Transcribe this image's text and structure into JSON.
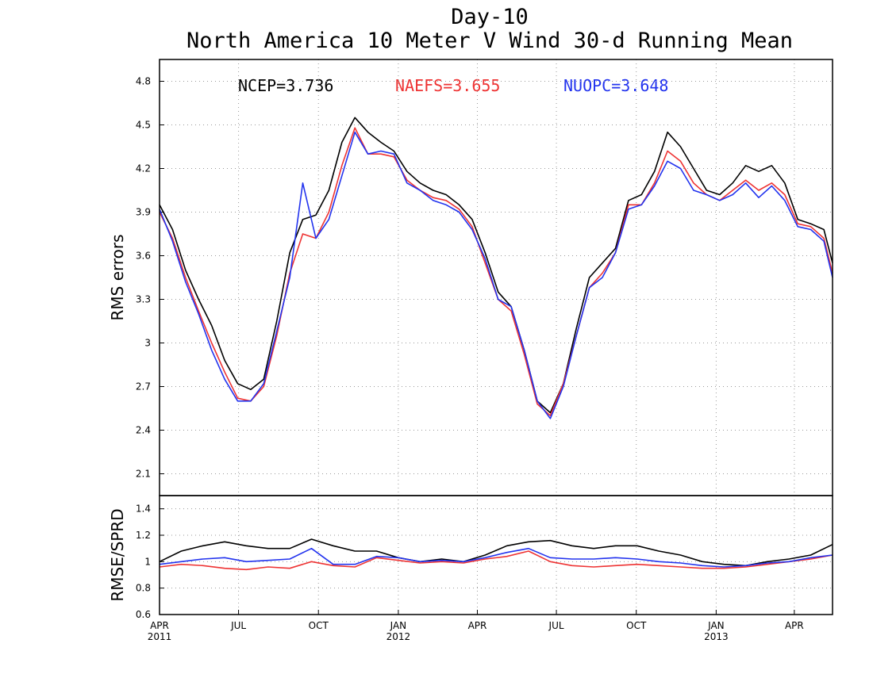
{
  "titles": {
    "line1": "Day-10",
    "line2": "North America 10 Meter V Wind 30-d Running Mean"
  },
  "legend": [
    {
      "label": "NCEP=3.736",
      "color": "#000000"
    },
    {
      "label": "NAEFS=3.655",
      "color": "#ee3333"
    },
    {
      "label": "NUOPC=3.648",
      "color": "#2233ee"
    }
  ],
  "chart_data": [
    {
      "type": "line",
      "ylabel": "RMS errors",
      "ylim": [
        1.95,
        4.95
      ],
      "yticks": [
        "2.1",
        "2.4",
        "2.7",
        "3",
        "3.3",
        "3.6",
        "3.9",
        "4.2",
        "4.5",
        "4.8"
      ],
      "grid": true,
      "legend_position": "top",
      "x": [
        0,
        15,
        30,
        45,
        60,
        75,
        90,
        105,
        120,
        135,
        150,
        165,
        180,
        195,
        210,
        225,
        240,
        255,
        270,
        285,
        300,
        315,
        330,
        345,
        360,
        375,
        390,
        405,
        420,
        435,
        450,
        465,
        480,
        495,
        510,
        525,
        540,
        555,
        570,
        585,
        600,
        615,
        630,
        645,
        660,
        675,
        690,
        705,
        720,
        735,
        750,
        765,
        775
      ],
      "series": [
        {
          "name": "NCEP",
          "color": "#000000",
          "values": [
            3.95,
            3.78,
            3.5,
            3.3,
            3.12,
            2.88,
            2.72,
            2.68,
            2.75,
            3.15,
            3.62,
            3.85,
            3.88,
            4.05,
            4.38,
            4.55,
            4.45,
            4.38,
            4.32,
            4.18,
            4.1,
            4.05,
            4.02,
            3.95,
            3.85,
            3.62,
            3.35,
            3.25,
            2.95,
            2.6,
            2.52,
            2.72,
            3.1,
            3.45,
            3.55,
            3.65,
            3.98,
            4.02,
            4.18,
            4.45,
            4.35,
            4.2,
            4.05,
            4.02,
            4.1,
            4.22,
            4.18,
            4.22,
            4.1,
            3.85,
            3.82,
            3.78,
            3.55
          ]
        },
        {
          "name": "NAEFS",
          "color": "#ee3333",
          "values": [
            3.9,
            3.72,
            3.45,
            3.22,
            3.0,
            2.8,
            2.62,
            2.6,
            2.7,
            3.05,
            3.48,
            3.75,
            3.72,
            3.9,
            4.22,
            4.48,
            4.3,
            4.3,
            4.28,
            4.12,
            4.05,
            4.0,
            3.98,
            3.92,
            3.8,
            3.55,
            3.3,
            3.22,
            2.92,
            2.58,
            2.5,
            2.72,
            3.05,
            3.38,
            3.48,
            3.62,
            3.95,
            3.95,
            4.1,
            4.32,
            4.25,
            4.1,
            4.02,
            3.98,
            4.05,
            4.12,
            4.05,
            4.1,
            4.02,
            3.82,
            3.8,
            3.72,
            3.48
          ]
        },
        {
          "name": "NUOPC",
          "color": "#2233ee",
          "values": [
            3.92,
            3.7,
            3.42,
            3.2,
            2.95,
            2.75,
            2.6,
            2.6,
            2.72,
            3.08,
            3.45,
            4.1,
            3.72,
            3.85,
            4.15,
            4.45,
            4.3,
            4.32,
            4.3,
            4.1,
            4.05,
            3.98,
            3.95,
            3.9,
            3.78,
            3.58,
            3.3,
            3.25,
            2.95,
            2.6,
            2.48,
            2.7,
            3.05,
            3.38,
            3.45,
            3.62,
            3.92,
            3.95,
            4.08,
            4.25,
            4.2,
            4.05,
            4.02,
            3.98,
            4.02,
            4.1,
            4.0,
            4.08,
            3.98,
            3.8,
            3.78,
            3.7,
            3.45
          ]
        }
      ]
    },
    {
      "type": "line",
      "ylabel": "RMSE/SPRD",
      "ylim": [
        0.6,
        1.5
      ],
      "yticks": [
        "0.6",
        "0.8",
        "1",
        "1.2",
        "1.4"
      ],
      "grid": true,
      "x": [
        0,
        25,
        50,
        75,
        100,
        125,
        150,
        175,
        200,
        225,
        250,
        275,
        300,
        325,
        350,
        375,
        400,
        425,
        450,
        475,
        500,
        525,
        550,
        575,
        600,
        625,
        650,
        675,
        700,
        725,
        750,
        775
      ],
      "series": [
        {
          "name": "NCEP",
          "color": "#000000",
          "values": [
            1.0,
            1.08,
            1.12,
            1.15,
            1.12,
            1.1,
            1.1,
            1.17,
            1.12,
            1.08,
            1.08,
            1.03,
            1.0,
            1.02,
            1.0,
            1.05,
            1.12,
            1.15,
            1.16,
            1.12,
            1.1,
            1.12,
            1.12,
            1.08,
            1.05,
            1.0,
            0.98,
            0.97,
            1.0,
            1.02,
            1.05,
            1.13
          ]
        },
        {
          "name": "NAEFS",
          "color": "#ee3333",
          "values": [
            0.96,
            0.98,
            0.97,
            0.95,
            0.94,
            0.96,
            0.95,
            1.0,
            0.97,
            0.96,
            1.03,
            1.01,
            0.99,
            1.0,
            0.99,
            1.02,
            1.04,
            1.08,
            1.0,
            0.97,
            0.96,
            0.97,
            0.98,
            0.97,
            0.96,
            0.95,
            0.95,
            0.96,
            0.98,
            1.0,
            1.02,
            1.05
          ]
        },
        {
          "name": "NUOPC",
          "color": "#2233ee",
          "values": [
            0.98,
            1.0,
            1.02,
            1.03,
            1.0,
            1.01,
            1.02,
            1.1,
            0.98,
            0.98,
            1.04,
            1.03,
            1.0,
            1.01,
            1.0,
            1.03,
            1.07,
            1.1,
            1.03,
            1.02,
            1.02,
            1.03,
            1.02,
            1.0,
            0.99,
            0.97,
            0.96,
            0.97,
            0.99,
            1.0,
            1.03,
            1.05
          ]
        }
      ]
    }
  ],
  "xaxis": {
    "range": [
      0,
      775
    ],
    "ticks": [
      {
        "x": 0,
        "label": "APR",
        "year": "2011"
      },
      {
        "x": 91,
        "label": "JUL",
        "year": ""
      },
      {
        "x": 183,
        "label": "OCT",
        "year": ""
      },
      {
        "x": 275,
        "label": "JAN",
        "year": "2012"
      },
      {
        "x": 366,
        "label": "APR",
        "year": ""
      },
      {
        "x": 457,
        "label": "JUL",
        "year": ""
      },
      {
        "x": 549,
        "label": "OCT",
        "year": ""
      },
      {
        "x": 641,
        "label": "JAN",
        "year": "2013"
      },
      {
        "x": 731,
        "label": "APR",
        "year": ""
      }
    ]
  }
}
